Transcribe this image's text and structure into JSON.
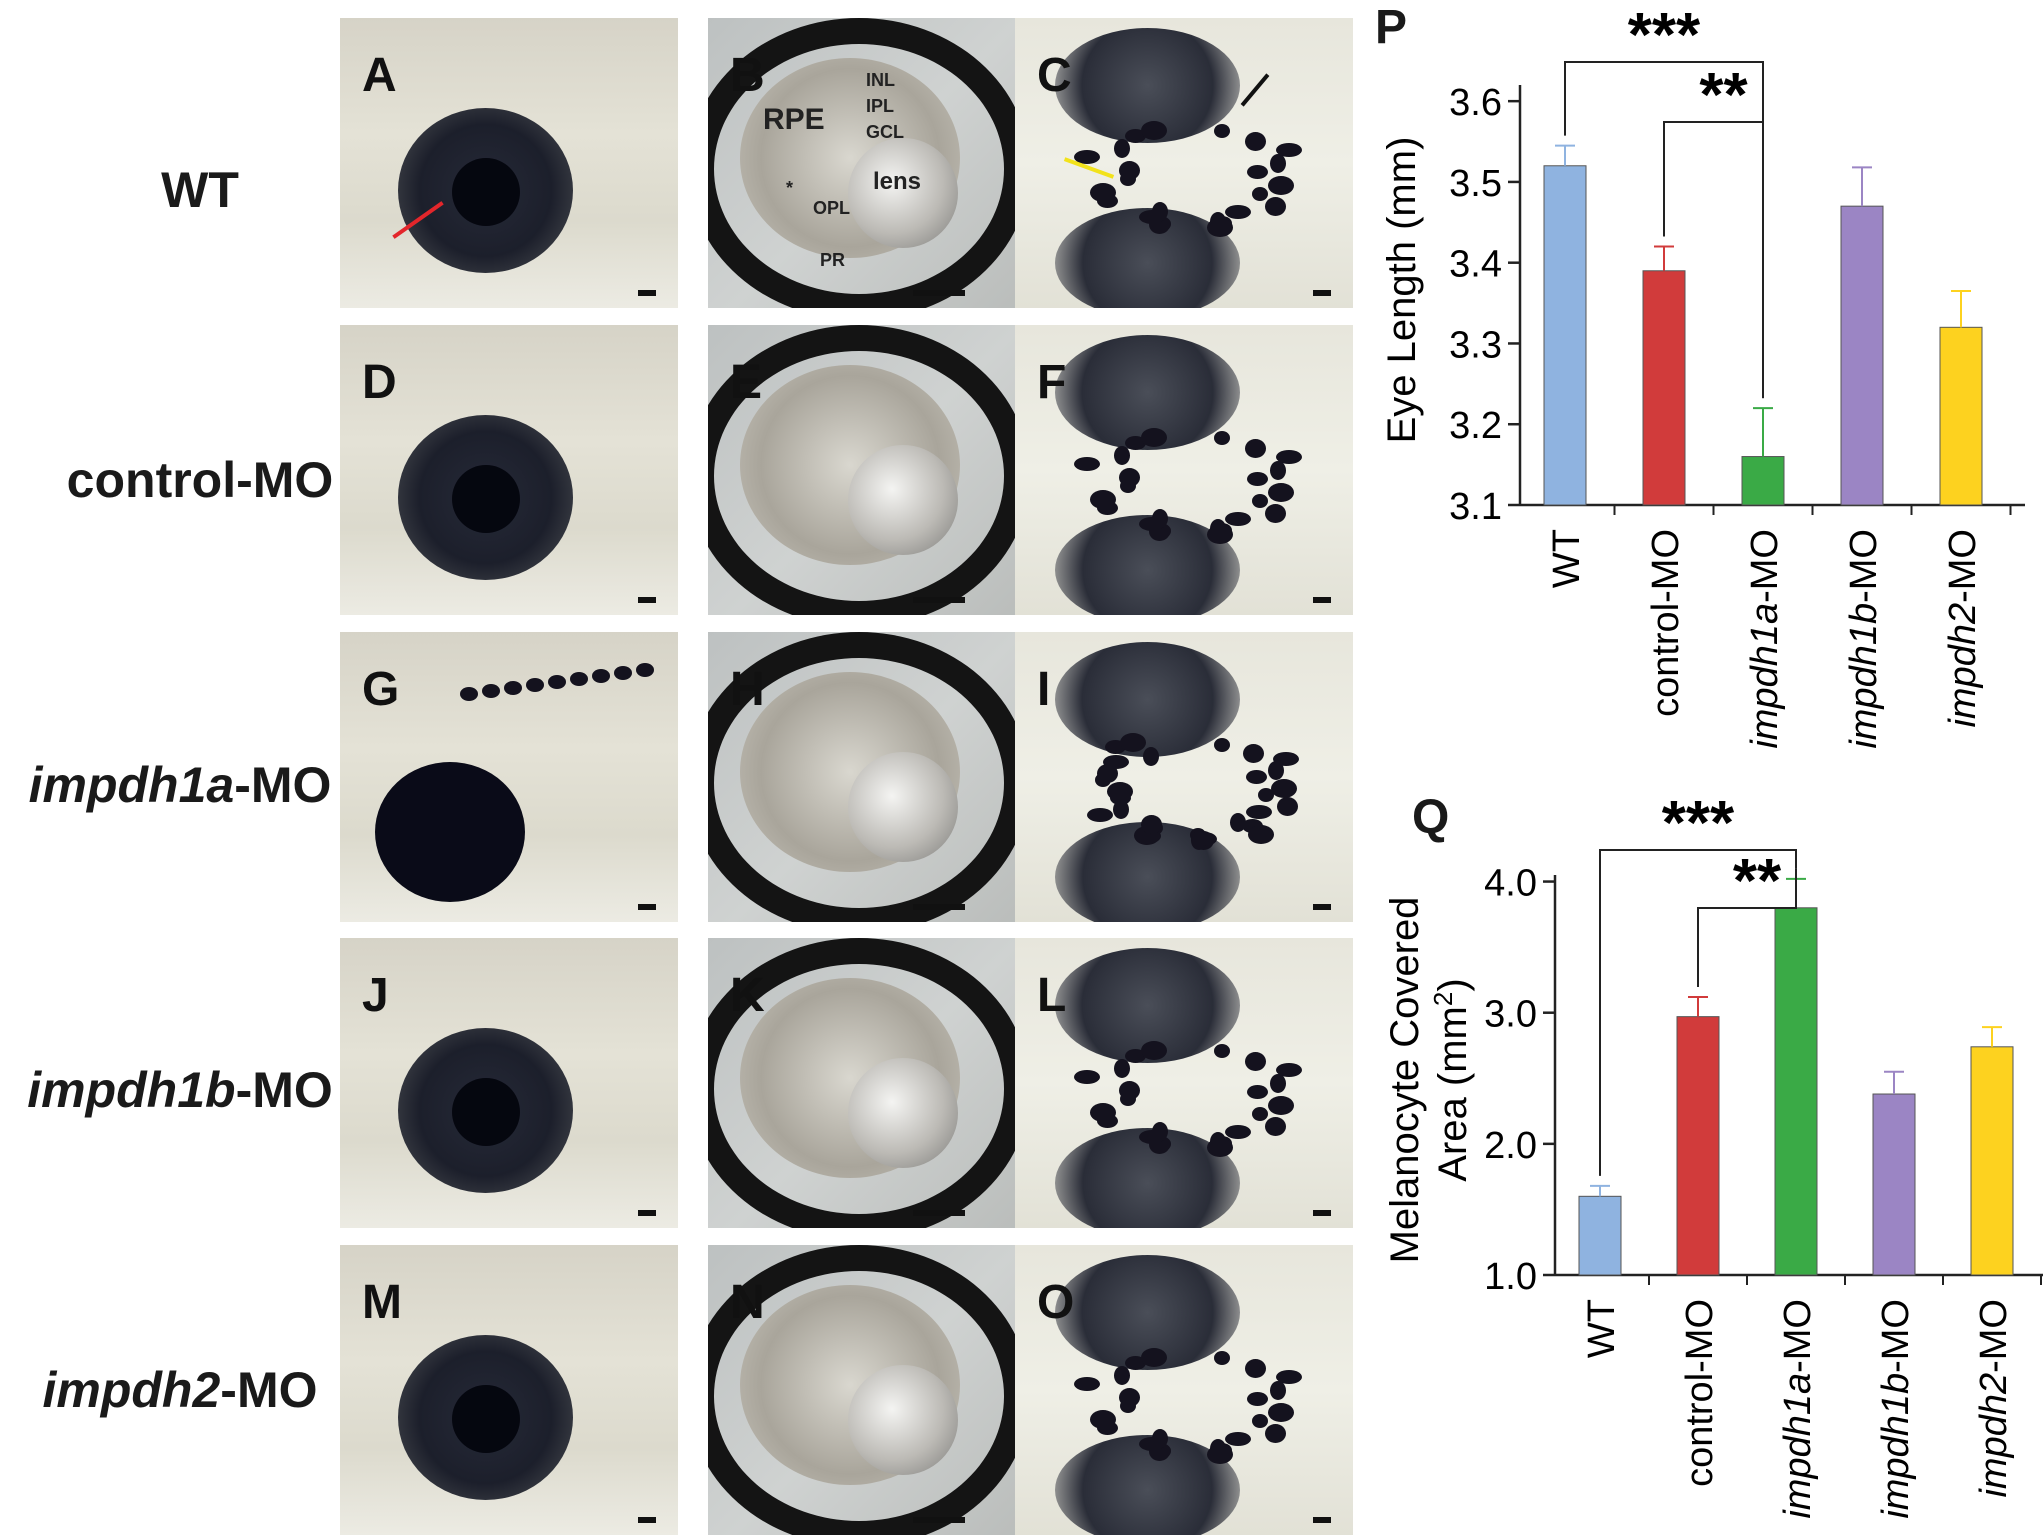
{
  "rows": [
    {
      "label_prefix": "",
      "label_italic": "",
      "label_suffix": "WT"
    },
    {
      "label_prefix": "control-MO",
      "label_italic": "",
      "label_suffix": ""
    },
    {
      "label_prefix": "",
      "label_italic": "impdh1a",
      "label_suffix": "-MO"
    },
    {
      "label_prefix": "",
      "label_italic": "impdh1b",
      "label_suffix": "-MO"
    },
    {
      "label_prefix": "",
      "label_italic": "impdh2",
      "label_suffix": "-MO"
    }
  ],
  "panel_letters": [
    "A",
    "B",
    "C",
    "D",
    "E",
    "F",
    "G",
    "H",
    "I",
    "J",
    "K",
    "L",
    "M",
    "N",
    "O"
  ],
  "section_labels": {
    "rpe": "RPE",
    "inl": "INL",
    "ipl": "IPL",
    "gcl": "GCL",
    "lens": "lens",
    "opl": "OPL",
    "pr": "PR",
    "asterisk": "*"
  },
  "colors": {
    "WT": "#8fb3e0",
    "control": "#d13b3b",
    "impdh1a": "#3aaa46",
    "impdh1b": "#9b85c4",
    "impdh2": "#fdd21f",
    "red_arrow": "#e3262b",
    "yellow_arrow": "#f2e21a"
  },
  "chart_data": [
    {
      "letter": "P",
      "type": "bar",
      "ylabel": "Eye Length (mm)",
      "categories": [
        {
          "italic": "",
          "suffix": "WT"
        },
        {
          "italic": "",
          "suffix": "control-MO"
        },
        {
          "italic": "impdh1a",
          "suffix": "-MO"
        },
        {
          "italic": "impdh1b",
          "suffix": "-MO"
        },
        {
          "italic": "impdh2",
          "suffix": "-MO"
        }
      ],
      "values": [
        3.52,
        3.39,
        3.16,
        3.47,
        3.32
      ],
      "errors": [
        0.025,
        0.03,
        0.06,
        0.048,
        0.045
      ],
      "ylim": [
        3.1,
        3.62
      ],
      "yticks": [
        "3.1",
        "3.2",
        "3.3",
        "3.4",
        "3.5",
        "3.6"
      ],
      "significance": [
        {
          "from": 0,
          "to": 2,
          "label": "***"
        },
        {
          "from": 1,
          "to": 2,
          "label": "**"
        }
      ]
    },
    {
      "letter": "Q",
      "type": "bar",
      "ylabel_line1": "Melanocyte Covered",
      "ylabel_line2": "Area (mm",
      "ylabel_sup": "2",
      "ylabel_close": ")",
      "categories": [
        {
          "italic": "",
          "suffix": "WT"
        },
        {
          "italic": "",
          "suffix": "control-MO"
        },
        {
          "italic": "impdh1a",
          "suffix": "-MO"
        },
        {
          "italic": "impdh1b",
          "suffix": "-MO"
        },
        {
          "italic": "impdh2",
          "suffix": "-MO"
        }
      ],
      "values": [
        1.6,
        2.97,
        3.8,
        2.38,
        2.74
      ],
      "errors": [
        0.08,
        0.15,
        0.22,
        0.17,
        0.15
      ],
      "ylim": [
        1.0,
        4.05
      ],
      "yticks": [
        "1.0",
        "2.0",
        "3.0",
        "4.0"
      ],
      "significance": [
        {
          "from": 0,
          "to": 2,
          "label": "***"
        },
        {
          "from": 1,
          "to": 2,
          "label": "**"
        }
      ]
    }
  ]
}
